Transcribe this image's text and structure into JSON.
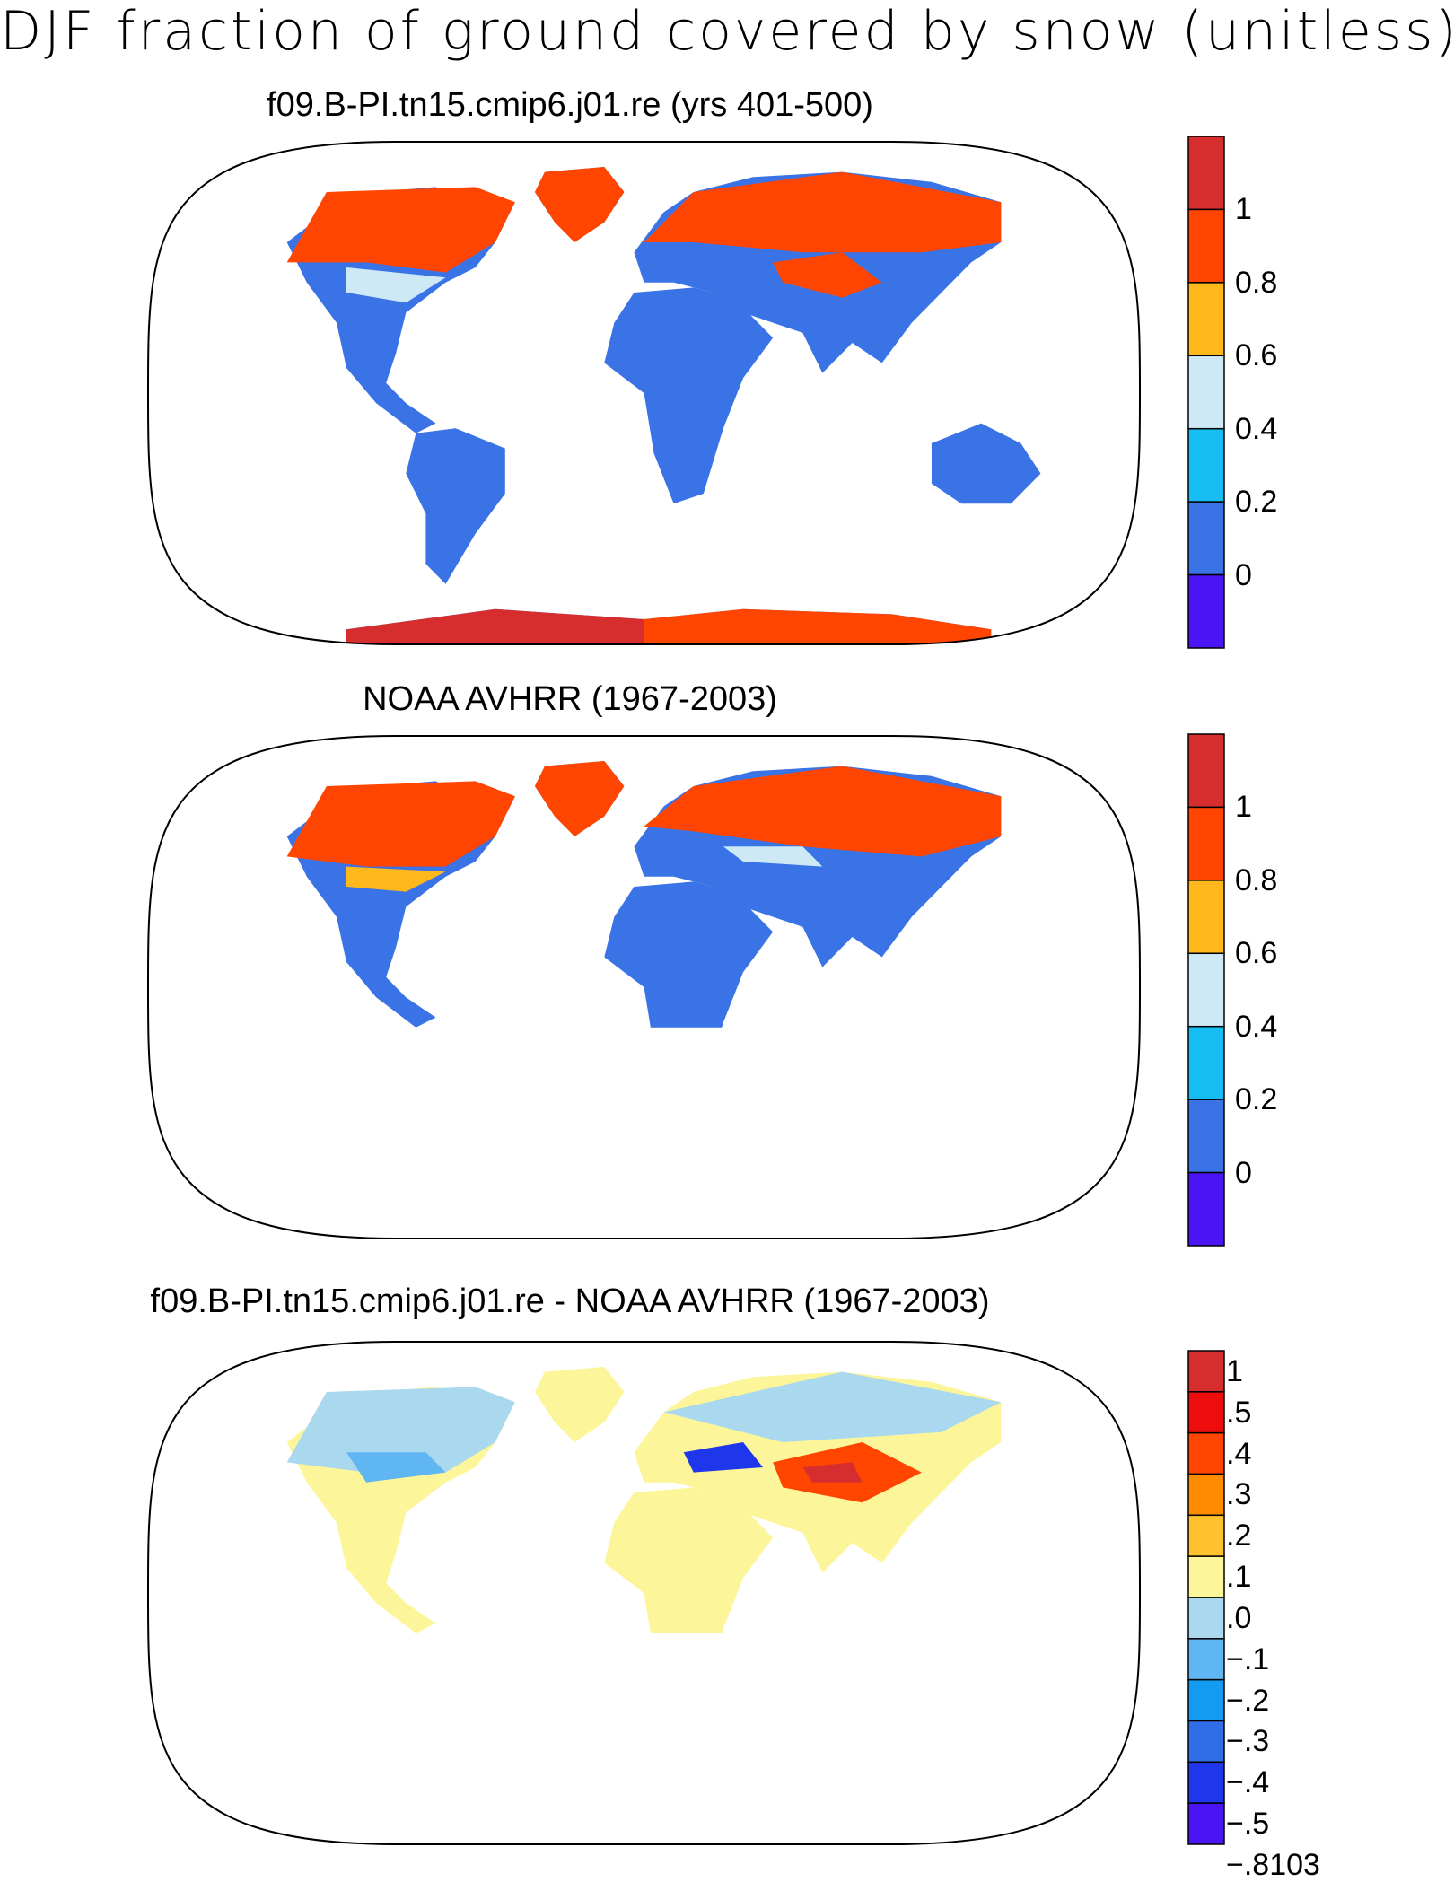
{
  "title": "DJF fraction of ground covered by snow (unitless)",
  "panels": [
    {
      "title": "f09.B-PI.tn15.cmip6.j01.re (yrs 401-500)",
      "colorbar": {
        "labels": [
          "1",
          "0.8",
          "0.6",
          "0.4",
          "0.2",
          "0"
        ],
        "colors": [
          "#d62e2e",
          "#ff4500",
          "#ffb81c",
          "#cde9f5",
          "#16bdf2",
          "#3a73e6",
          "#4a14f5"
        ]
      }
    },
    {
      "title": "NOAA AVHRR (1967-2003)",
      "colorbar": {
        "labels": [
          "1",
          "0.8",
          "0.6",
          "0.4",
          "0.2",
          "0"
        ],
        "colors": [
          "#d62e2e",
          "#ff4500",
          "#ffb81c",
          "#cde9f5",
          "#16bdf2",
          "#3a73e6",
          "#4a14f5"
        ]
      }
    },
    {
      "title": "f09.B-PI.tn15.cmip6.j01.re - NOAA AVHRR (1967-2003)",
      "colorbar": {
        "labels": [
          "1",
          ".5",
          ".4",
          ".3",
          ".2",
          ".1",
          ".0",
          "−.1",
          "−.2",
          "−.3",
          "−.4",
          "−.5",
          "−.8103"
        ],
        "colors": [
          "#d62e2e",
          "#ee0d0d",
          "#ff4500",
          "#ff8c00",
          "#ffc12e",
          "#fdf59a",
          "#a9d8ef",
          "#5fb6f2",
          "#139bf2",
          "#2f6ee8",
          "#1f37ea",
          "#4a14f5"
        ]
      }
    }
  ]
}
